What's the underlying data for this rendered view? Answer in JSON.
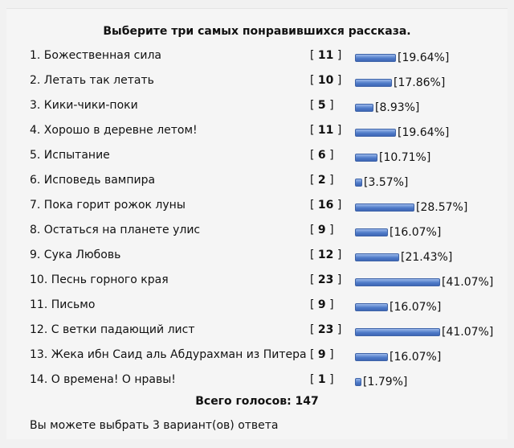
{
  "poll": {
    "title": "Выберите три самых понравившихся рассказа.",
    "options": [
      {
        "label": "1. Божественная сила",
        "votes": "11",
        "percent": "[19.64%]",
        "value": 19.64
      },
      {
        "label": "2. Летать так летать",
        "votes": "10",
        "percent": "[17.86%]",
        "value": 17.86
      },
      {
        "label": "3. Кики-чики-поки",
        "votes": "5",
        "percent": "[8.93%]",
        "value": 8.93
      },
      {
        "label": "4. Хорошо в деревне летом!",
        "votes": "11",
        "percent": "[19.64%]",
        "value": 19.64
      },
      {
        "label": "5. Испытание",
        "votes": "6",
        "percent": "[10.71%]",
        "value": 10.71
      },
      {
        "label": "6. Исповедь вампира",
        "votes": "2",
        "percent": "[3.57%]",
        "value": 3.57
      },
      {
        "label": "7. Пока горит рожок луны",
        "votes": "16",
        "percent": "[28.57%]",
        "value": 28.57
      },
      {
        "label": "8. Остаться на планете улис",
        "votes": "9",
        "percent": "[16.07%]",
        "value": 16.07
      },
      {
        "label": "9. Сука Любовь",
        "votes": "12",
        "percent": "[21.43%]",
        "value": 21.43
      },
      {
        "label": "10.  Песнь горного края",
        "votes": "23",
        "percent": "[41.07%]",
        "value": 41.07
      },
      {
        "label": "11. Письмо",
        "votes": "9",
        "percent": "[16.07%]",
        "value": 16.07
      },
      {
        "label": "12. С ветки падающий лист",
        "votes": "23",
        "percent": "[41.07%]",
        "value": 41.07
      },
      {
        "label": "13. Жека ибн Саид аль Абдурахман из Питера",
        "votes": "9",
        "percent": "[16.07%]",
        "value": 16.07
      },
      {
        "label": "14. О времена! О нравы!",
        "votes": "1",
        "percent": "[1.79%]",
        "value": 1.79
      }
    ],
    "total": "Всего голосов: 147",
    "note": "Вы можете выбрать 3 вариант(ов) ответа",
    "bar_color": "#4f7bc8"
  }
}
